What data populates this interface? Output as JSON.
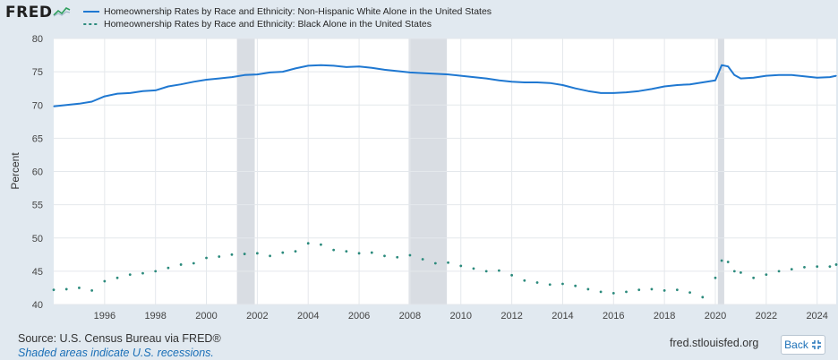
{
  "header": {
    "logo_text": "FRED",
    "logo_icon": "chart-graph-icon"
  },
  "colors": {
    "series_white": "#1f78d1",
    "series_black": "#2b8a7c",
    "recession": "#d9dde3",
    "background": "#e1e9f0",
    "plot_bg": "#ffffff"
  },
  "chart_data": {
    "type": "line",
    "title": "",
    "ylabel": "Percent",
    "xlabel": "",
    "ylim": [
      40,
      80
    ],
    "xlim": [
      1994.0,
      2024.75
    ],
    "yticks": [
      40,
      45,
      50,
      55,
      60,
      65,
      70,
      75,
      80
    ],
    "xticks": [
      1996,
      1998,
      2000,
      2002,
      2004,
      2006,
      2008,
      2010,
      2012,
      2014,
      2016,
      2018,
      2020,
      2022,
      2024
    ],
    "grid": true,
    "legend_position": "top",
    "recessions": [
      [
        2001.2,
        2001.9
      ],
      [
        2007.95,
        2009.45
      ],
      [
        2020.1,
        2020.35
      ]
    ],
    "series": [
      {
        "name": "Homeownership Rates by Race and Ethnicity: Non-Hispanic White Alone in the United States",
        "style": "solid",
        "x": [
          1994.0,
          1994.5,
          1995.0,
          1995.5,
          1996.0,
          1996.5,
          1997.0,
          1997.5,
          1998.0,
          1998.5,
          1999.0,
          1999.5,
          2000.0,
          2000.5,
          2001.0,
          2001.5,
          2002.0,
          2002.5,
          2003.0,
          2003.5,
          2004.0,
          2004.5,
          2005.0,
          2005.5,
          2006.0,
          2006.5,
          2007.0,
          2007.5,
          2008.0,
          2008.5,
          2009.0,
          2009.5,
          2010.0,
          2010.5,
          2011.0,
          2011.5,
          2012.0,
          2012.5,
          2013.0,
          2013.5,
          2014.0,
          2014.5,
          2015.0,
          2015.5,
          2016.0,
          2016.5,
          2017.0,
          2017.5,
          2018.0,
          2018.5,
          2019.0,
          2019.5,
          2020.0,
          2020.25,
          2020.5,
          2020.75,
          2021.0,
          2021.5,
          2022.0,
          2022.5,
          2023.0,
          2023.5,
          2024.0,
          2024.5,
          2024.75
        ],
        "values": [
          69.8,
          70.0,
          70.2,
          70.5,
          71.3,
          71.7,
          71.8,
          72.1,
          72.2,
          72.8,
          73.1,
          73.5,
          73.8,
          74.0,
          74.2,
          74.5,
          74.6,
          74.9,
          75.0,
          75.5,
          75.9,
          76.0,
          75.9,
          75.7,
          75.8,
          75.6,
          75.3,
          75.1,
          74.9,
          74.8,
          74.7,
          74.6,
          74.4,
          74.2,
          74.0,
          73.7,
          73.5,
          73.4,
          73.4,
          73.3,
          73.0,
          72.5,
          72.1,
          71.8,
          71.8,
          71.9,
          72.1,
          72.4,
          72.8,
          73.0,
          73.1,
          73.4,
          73.7,
          76.0,
          75.8,
          74.5,
          74.0,
          74.1,
          74.4,
          74.5,
          74.5,
          74.3,
          74.1,
          74.2,
          74.4
        ]
      },
      {
        "name": "Homeownership Rates by Race and Ethnicity: Black Alone in the United States",
        "style": "dotted",
        "x": [
          1994.0,
          1994.5,
          1995.0,
          1995.5,
          1996.0,
          1996.5,
          1997.0,
          1997.5,
          1998.0,
          1998.5,
          1999.0,
          1999.5,
          2000.0,
          2000.5,
          2001.0,
          2001.5,
          2002.0,
          2002.5,
          2003.0,
          2003.5,
          2004.0,
          2004.5,
          2005.0,
          2005.5,
          2006.0,
          2006.5,
          2007.0,
          2007.5,
          2008.0,
          2008.5,
          2009.0,
          2009.5,
          2010.0,
          2010.5,
          2011.0,
          2011.5,
          2012.0,
          2012.5,
          2013.0,
          2013.5,
          2014.0,
          2014.5,
          2015.0,
          2015.5,
          2016.0,
          2016.5,
          2017.0,
          2017.5,
          2018.0,
          2018.5,
          2019.0,
          2019.5,
          2020.0,
          2020.25,
          2020.5,
          2020.75,
          2021.0,
          2021.5,
          2022.0,
          2022.5,
          2023.0,
          2023.5,
          2024.0,
          2024.5,
          2024.75
        ],
        "values": [
          42.2,
          42.3,
          42.5,
          42.1,
          43.5,
          44.0,
          44.5,
          44.7,
          45.0,
          45.5,
          46.0,
          46.2,
          47.0,
          47.2,
          47.5,
          47.6,
          47.7,
          47.3,
          47.8,
          48.0,
          49.2,
          49.0,
          48.2,
          48.0,
          47.7,
          47.8,
          47.3,
          47.1,
          47.4,
          46.8,
          46.2,
          46.3,
          45.8,
          45.4,
          45.0,
          45.1,
          44.4,
          43.6,
          43.3,
          43.0,
          43.1,
          42.8,
          42.3,
          41.9,
          41.7,
          41.9,
          42.2,
          42.3,
          42.1,
          42.2,
          41.8,
          41.1,
          44.0,
          46.6,
          46.4,
          45.0,
          44.8,
          44.0,
          44.5,
          45.0,
          45.3,
          45.6,
          45.7,
          45.7,
          46.0
        ]
      }
    ]
  },
  "footer": {
    "source": "Source: U.S. Census Bureau via FRED®",
    "note": "Shaded areas indicate U.S. recessions.",
    "site": "fred.stlouisfed.org",
    "back_label": "Back"
  }
}
